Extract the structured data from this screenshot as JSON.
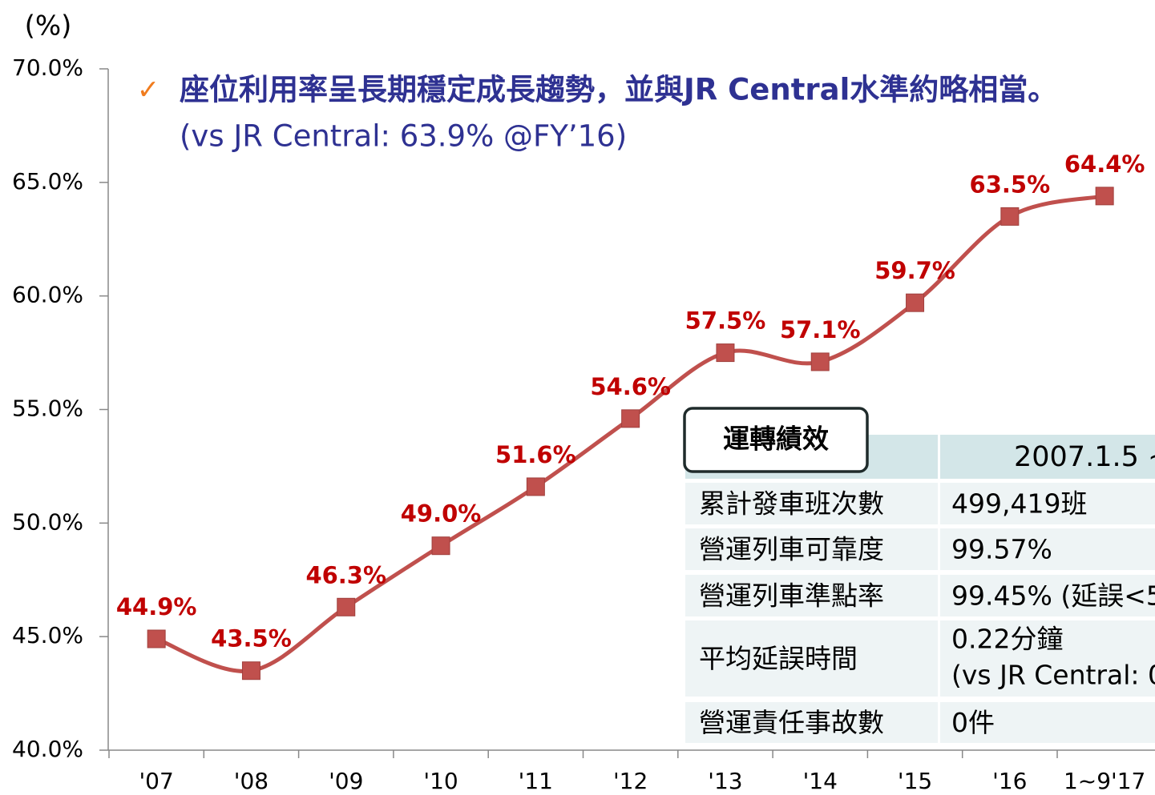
{
  "chart_data": {
    "type": "line",
    "y_unit": "(%)",
    "check": "✓",
    "title": "座位利用率呈長期穩定成長趨勢，並與JR Central水準約略相當。",
    "subtitle": "(vs JR Central: 63.9% @FY’16)",
    "categories": [
      "'07",
      "'08",
      "'09",
      "'10",
      "'11",
      "'12",
      "'13",
      "'14",
      "'15",
      "'16",
      "1~9'17"
    ],
    "values": [
      44.9,
      43.5,
      46.3,
      49.0,
      51.6,
      54.6,
      57.5,
      57.1,
      59.7,
      63.5,
      64.4
    ],
    "value_labels": [
      "44.9%",
      "43.5%",
      "46.3%",
      "49.0%",
      "51.6%",
      "54.6%",
      "57.5%",
      "57.1%",
      "59.7%",
      "63.5%",
      "64.4%"
    ],
    "color": "#c0504d",
    "label_color": "#c00000",
    "ylim": [
      40,
      70
    ],
    "yticks": [
      {
        "value": 40,
        "label": "40.0%"
      },
      {
        "value": 45,
        "label": "45.0%"
      },
      {
        "value": 50,
        "label": "50.0%"
      },
      {
        "value": 55,
        "label": "55.0%"
      },
      {
        "value": 60,
        "label": "60.0%"
      },
      {
        "value": 65,
        "label": "65.0%"
      },
      {
        "value": 70,
        "label": "70.0%"
      }
    ],
    "grid": false
  },
  "table": {
    "title": "運轉績效",
    "header": "2007.1.5 ~",
    "rows": [
      [
        "累計發車班次數",
        "499,419班"
      ],
      [
        "營運列車可靠度",
        "99.57%"
      ],
      [
        "營運列車準點率",
        "99.45% (延誤<5"
      ],
      [
        "平均延誤時間",
        [
          "0.22分鐘",
          "(vs JR Central: 0"
        ]
      ],
      [
        "營運責任事故數",
        "0件"
      ]
    ]
  }
}
